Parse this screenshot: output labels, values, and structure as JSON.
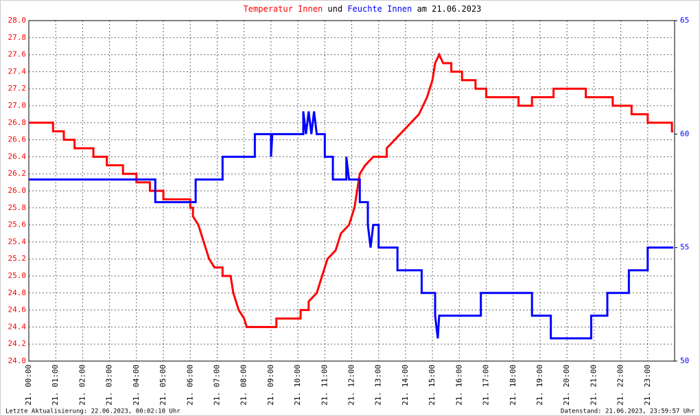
{
  "chart_data": {
    "type": "line",
    "title": [
      "Temperatur Innen",
      "und",
      "Feuchte Innen",
      "am 21.06.2023"
    ],
    "footer_left": "Letzte Aktualisierung: 22.06.2023, 00:02:10 Uhr",
    "footer_right": "Datenstand: 21.06.2023, 23:59:57 Uhr",
    "grid": true,
    "xlim": [
      0,
      24
    ],
    "xticks": [
      {
        "value": 0,
        "label": "21. 00:00"
      },
      {
        "value": 1,
        "label": "21. 01:00"
      },
      {
        "value": 2,
        "label": "21. 02:00"
      },
      {
        "value": 3,
        "label": "21. 03:00"
      },
      {
        "value": 4,
        "label": "21. 04:00"
      },
      {
        "value": 5,
        "label": "21. 05:00"
      },
      {
        "value": 6,
        "label": "21. 06:00"
      },
      {
        "value": 7,
        "label": "21. 07:00"
      },
      {
        "value": 8,
        "label": "21. 08:00"
      },
      {
        "value": 9,
        "label": "21. 09:00"
      },
      {
        "value": 10,
        "label": "21. 10:00"
      },
      {
        "value": 11,
        "label": "21. 11:00"
      },
      {
        "value": 12,
        "label": "21. 12:00"
      },
      {
        "value": 13,
        "label": "21. 13:00"
      },
      {
        "value": 14,
        "label": "21. 14:00"
      },
      {
        "value": 15,
        "label": "21. 15:00"
      },
      {
        "value": 16,
        "label": "21. 16:00"
      },
      {
        "value": 17,
        "label": "21. 17:00"
      },
      {
        "value": 18,
        "label": "21. 18:00"
      },
      {
        "value": 19,
        "label": "21. 19:00"
      },
      {
        "value": 20,
        "label": "21. 20:00"
      },
      {
        "value": 21,
        "label": "21. 21:00"
      },
      {
        "value": 22,
        "label": "21. 22:00"
      },
      {
        "value": 23,
        "label": "21. 23:00"
      }
    ],
    "ylim": [
      24,
      28
    ],
    "yticks": [
      {
        "value": 24,
        "label": "24.0"
      },
      {
        "value": 24.2,
        "label": "24.2"
      },
      {
        "value": 24.4,
        "label": "24.4"
      },
      {
        "value": 24.6,
        "label": "24.6"
      },
      {
        "value": 24.8,
        "label": "24.8"
      },
      {
        "value": 25,
        "label": "25.0"
      },
      {
        "value": 25.2,
        "label": "25.2"
      },
      {
        "value": 25.4,
        "label": "25.4"
      },
      {
        "value": 25.6,
        "label": "25.6"
      },
      {
        "value": 25.8,
        "label": "25.8"
      },
      {
        "value": 26,
        "label": "26.0"
      },
      {
        "value": 26.2,
        "label": "26.2"
      },
      {
        "value": 26.4,
        "label": "26.4"
      },
      {
        "value": 26.6,
        "label": "26.6"
      },
      {
        "value": 26.8,
        "label": "26.8"
      },
      {
        "value": 27,
        "label": "27.0"
      },
      {
        "value": 27.2,
        "label": "27.2"
      },
      {
        "value": 27.4,
        "label": "27.4"
      },
      {
        "value": 27.6,
        "label": "27.6"
      },
      {
        "value": 27.8,
        "label": "27.8"
      },
      {
        "value": 28,
        "label": "28.0"
      }
    ],
    "y2lim": [
      50,
      65
    ],
    "y2ticks": [
      50,
      55,
      60,
      65
    ],
    "series": [
      {
        "name": "Temperatur Innen",
        "color": "#ff0000",
        "x": [
          0,
          0.9,
          0.9,
          1.3,
          1.3,
          1.7,
          1.7,
          2.4,
          2.4,
          2.9,
          2.9,
          3.5,
          3.5,
          4.0,
          4.0,
          4.5,
          4.5,
          5.0,
          5.0,
          6.0,
          6.0,
          6.1,
          6.1,
          6.3,
          6.5,
          6.7,
          6.9,
          7.2,
          7.2,
          7.5,
          7.6,
          7.8,
          8.0,
          8.1,
          9.2,
          9.2,
          10.1,
          10.1,
          10.4,
          10.4,
          10.7,
          10.9,
          11.1,
          11.4,
          11.6,
          11.9,
          12.1,
          12.2,
          12.3,
          12.5,
          12.8,
          13.3,
          13.3,
          13.6,
          13.9,
          14.2,
          14.5,
          14.8,
          15.0,
          15.1,
          15.25,
          15.4,
          15.7,
          15.7,
          16.1,
          16.1,
          16.6,
          16.6,
          17.0,
          17.0,
          18.2,
          18.2,
          18.7,
          18.7,
          19.5,
          19.5,
          20.7,
          20.7,
          21.7,
          21.7,
          22.4,
          22.4,
          23.0,
          23.0,
          23.9,
          23.9,
          23.95
        ],
        "values": [
          26.8,
          26.8,
          26.7,
          26.7,
          26.6,
          26.6,
          26.5,
          26.5,
          26.4,
          26.4,
          26.3,
          26.3,
          26.2,
          26.2,
          26.1,
          26.1,
          26.0,
          26.0,
          25.9,
          25.9,
          25.8,
          25.8,
          25.7,
          25.6,
          25.4,
          25.2,
          25.1,
          25.1,
          25.0,
          25.0,
          24.8,
          24.6,
          24.5,
          24.4,
          24.4,
          24.5,
          24.5,
          24.6,
          24.6,
          24.7,
          24.8,
          25.0,
          25.2,
          25.3,
          25.5,
          25.6,
          25.8,
          26.0,
          26.2,
          26.3,
          26.4,
          26.4,
          26.5,
          26.6,
          26.7,
          26.8,
          26.9,
          27.1,
          27.3,
          27.5,
          27.6,
          27.5,
          27.5,
          27.4,
          27.4,
          27.3,
          27.3,
          27.2,
          27.2,
          27.1,
          27.1,
          27.0,
          27.0,
          27.1,
          27.1,
          27.2,
          27.2,
          27.1,
          27.1,
          27.0,
          27.0,
          26.9,
          26.9,
          26.8,
          26.8,
          26.7,
          26.7
        ]
      },
      {
        "name": "Feuchte Innen",
        "color": "#0000ff",
        "axis": "y2",
        "x": [
          0,
          4.7,
          4.7,
          6.2,
          6.2,
          7.2,
          7.2,
          8.4,
          8.4,
          9.0,
          9.0,
          9.05,
          10.2,
          10.2,
          10.3,
          10.4,
          10.5,
          10.6,
          10.7,
          11.0,
          11.0,
          11.3,
          11.3,
          11.8,
          11.8,
          11.9,
          12.3,
          12.3,
          12.6,
          12.6,
          12.7,
          12.8,
          13.0,
          13.0,
          13.7,
          13.7,
          14.6,
          14.6,
          15.1,
          15.1,
          15.2,
          15.25,
          16.8,
          16.8,
          18.7,
          18.7,
          19.4,
          19.4,
          20.9,
          20.9,
          21.5,
          21.5,
          22.3,
          22.3,
          23.0,
          23.0,
          23.95
        ],
        "values": [
          58,
          58,
          57,
          57,
          58,
          58,
          59,
          59,
          60,
          60,
          59,
          60,
          60,
          61,
          60,
          61,
          60,
          61,
          60,
          60,
          59,
          59,
          58,
          58,
          59,
          58,
          58,
          57,
          57,
          56,
          55,
          56,
          56,
          55,
          55,
          54,
          54,
          53,
          53,
          52,
          51,
          52,
          52,
          53,
          53,
          52,
          52,
          51,
          51,
          52,
          52,
          53,
          53,
          54,
          54,
          55,
          55
        ]
      }
    ]
  }
}
